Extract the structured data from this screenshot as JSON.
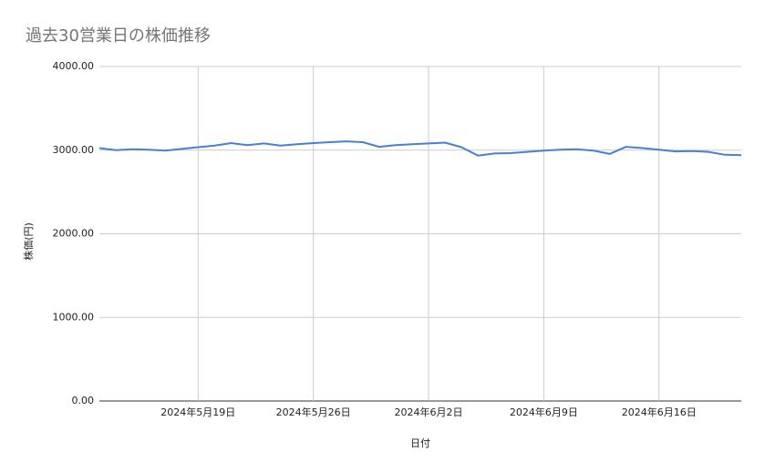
{
  "chart_data": {
    "type": "line",
    "title": "過去30営業日の株価推移",
    "x_label": "日付",
    "y_label": "株価(円)",
    "x": [
      "2024-05-13",
      "2024-05-14",
      "2024-05-15",
      "2024-05-16",
      "2024-05-17",
      "2024-05-18",
      "2024-05-19",
      "2024-05-20",
      "2024-05-21",
      "2024-05-22",
      "2024-05-23",
      "2024-05-24",
      "2024-05-25",
      "2024-05-26",
      "2024-05-27",
      "2024-05-28",
      "2024-05-29",
      "2024-05-30",
      "2024-05-31",
      "2024-06-01",
      "2024-06-02",
      "2024-06-03",
      "2024-06-04",
      "2024-06-05",
      "2024-06-06",
      "2024-06-07",
      "2024-06-08",
      "2024-06-09",
      "2024-06-10",
      "2024-06-11",
      "2024-06-12",
      "2024-06-13",
      "2024-06-14",
      "2024-06-15",
      "2024-06-16",
      "2024-06-17",
      "2024-06-18",
      "2024-06-19",
      "2024-06-20",
      "2024-06-21"
    ],
    "series": [
      {
        "name": "株価",
        "color": "#4a7fd4",
        "values": [
          3025,
          3000,
          3010,
          3005,
          2995,
          3015,
          3035,
          3055,
          3085,
          3060,
          3080,
          3055,
          3070,
          3085,
          3095,
          3105,
          3095,
          3040,
          3060,
          3070,
          3080,
          3090,
          3035,
          2935,
          2960,
          2965,
          2980,
          2995,
          3005,
          3010,
          2995,
          2955,
          3040,
          3025,
          3005,
          2985,
          2990,
          2980,
          2945,
          2940
        ]
      }
    ],
    "xlim": [
      "2024-05-13",
      "2024-06-21"
    ],
    "xticks": [
      {
        "value": "2024-05-19",
        "label": "2024年5月19日"
      },
      {
        "value": "2024-05-26",
        "label": "2024年5月26日"
      },
      {
        "value": "2024-06-02",
        "label": "2024年6月2日"
      },
      {
        "value": "2024-06-09",
        "label": "2024年6月9日"
      },
      {
        "value": "2024-06-16",
        "label": "2024年6月16日"
      }
    ],
    "ylim": [
      0,
      4000
    ],
    "yticks": [
      {
        "value": 0,
        "label": "0.00"
      },
      {
        "value": 1000,
        "label": "1000.00"
      },
      {
        "value": 2000,
        "label": "2000.00"
      },
      {
        "value": 3000,
        "label": "3000.00"
      },
      {
        "value": 4000,
        "label": "4000.00"
      }
    ],
    "grid": true
  }
}
